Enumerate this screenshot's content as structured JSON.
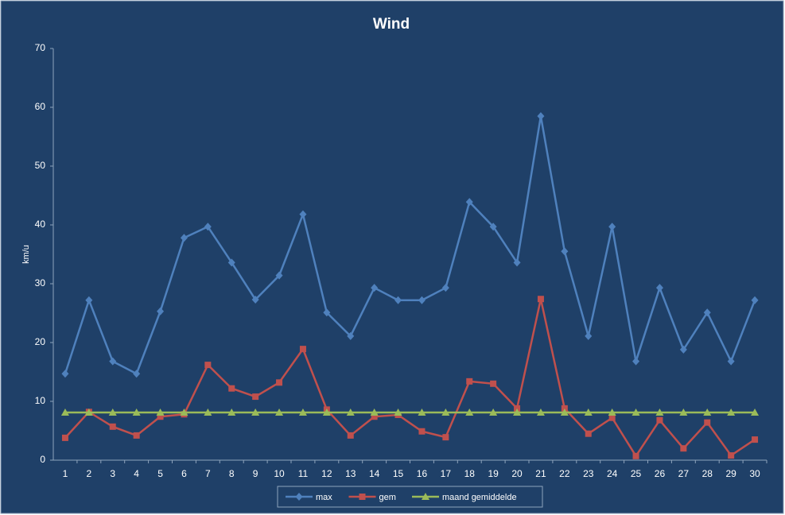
{
  "chart_data": {
    "type": "line",
    "title": "Wind",
    "y_label": "km/u",
    "categories": [
      "1",
      "2",
      "3",
      "4",
      "5",
      "6",
      "7",
      "8",
      "9",
      "10",
      "11",
      "12",
      "13",
      "14",
      "15",
      "16",
      "17",
      "18",
      "19",
      "20",
      "21",
      "22",
      "23",
      "24",
      "25",
      "26",
      "27",
      "28",
      "29",
      "30"
    ],
    "series": [
      {
        "name": "max",
        "color": "#4f81bd",
        "marker": "diamond",
        "values": [
          14.7,
          27.2,
          16.8,
          14.7,
          25.3,
          37.8,
          39.7,
          33.6,
          27.3,
          31.4,
          41.8,
          25.1,
          21.1,
          29.3,
          27.2,
          27.2,
          29.3,
          43.9,
          39.7,
          33.6,
          58.5,
          35.5,
          21.1,
          39.7,
          16.8,
          29.3,
          18.8,
          25.1,
          16.8,
          27.2
        ]
      },
      {
        "name": "gem",
        "color": "#c0504d",
        "marker": "square",
        "values": [
          3.8,
          8.2,
          5.7,
          4.2,
          7.4,
          7.8,
          16.2,
          12.2,
          10.8,
          13.2,
          18.9,
          8.6,
          4.2,
          7.4,
          7.7,
          4.9,
          3.9,
          13.4,
          13.0,
          8.8,
          27.4,
          8.8,
          4.5,
          7.2,
          0.7,
          6.8,
          2.0,
          6.4,
          0.8,
          3.5
        ]
      },
      {
        "name": "maand gemiddelde",
        "color": "#9bbb59",
        "marker": "triangle",
        "values": [
          8.1,
          8.1,
          8.1,
          8.1,
          8.1,
          8.1,
          8.1,
          8.1,
          8.1,
          8.1,
          8.1,
          8.1,
          8.1,
          8.1,
          8.1,
          8.1,
          8.1,
          8.1,
          8.1,
          8.1,
          8.1,
          8.1,
          8.1,
          8.1,
          8.1,
          8.1,
          8.1,
          8.1,
          8.1,
          8.1
        ]
      }
    ],
    "ylim": [
      0,
      70
    ],
    "yticks": [
      0,
      10,
      20,
      30,
      40,
      50,
      60,
      70
    ],
    "grid": false,
    "legend": "bottom"
  }
}
